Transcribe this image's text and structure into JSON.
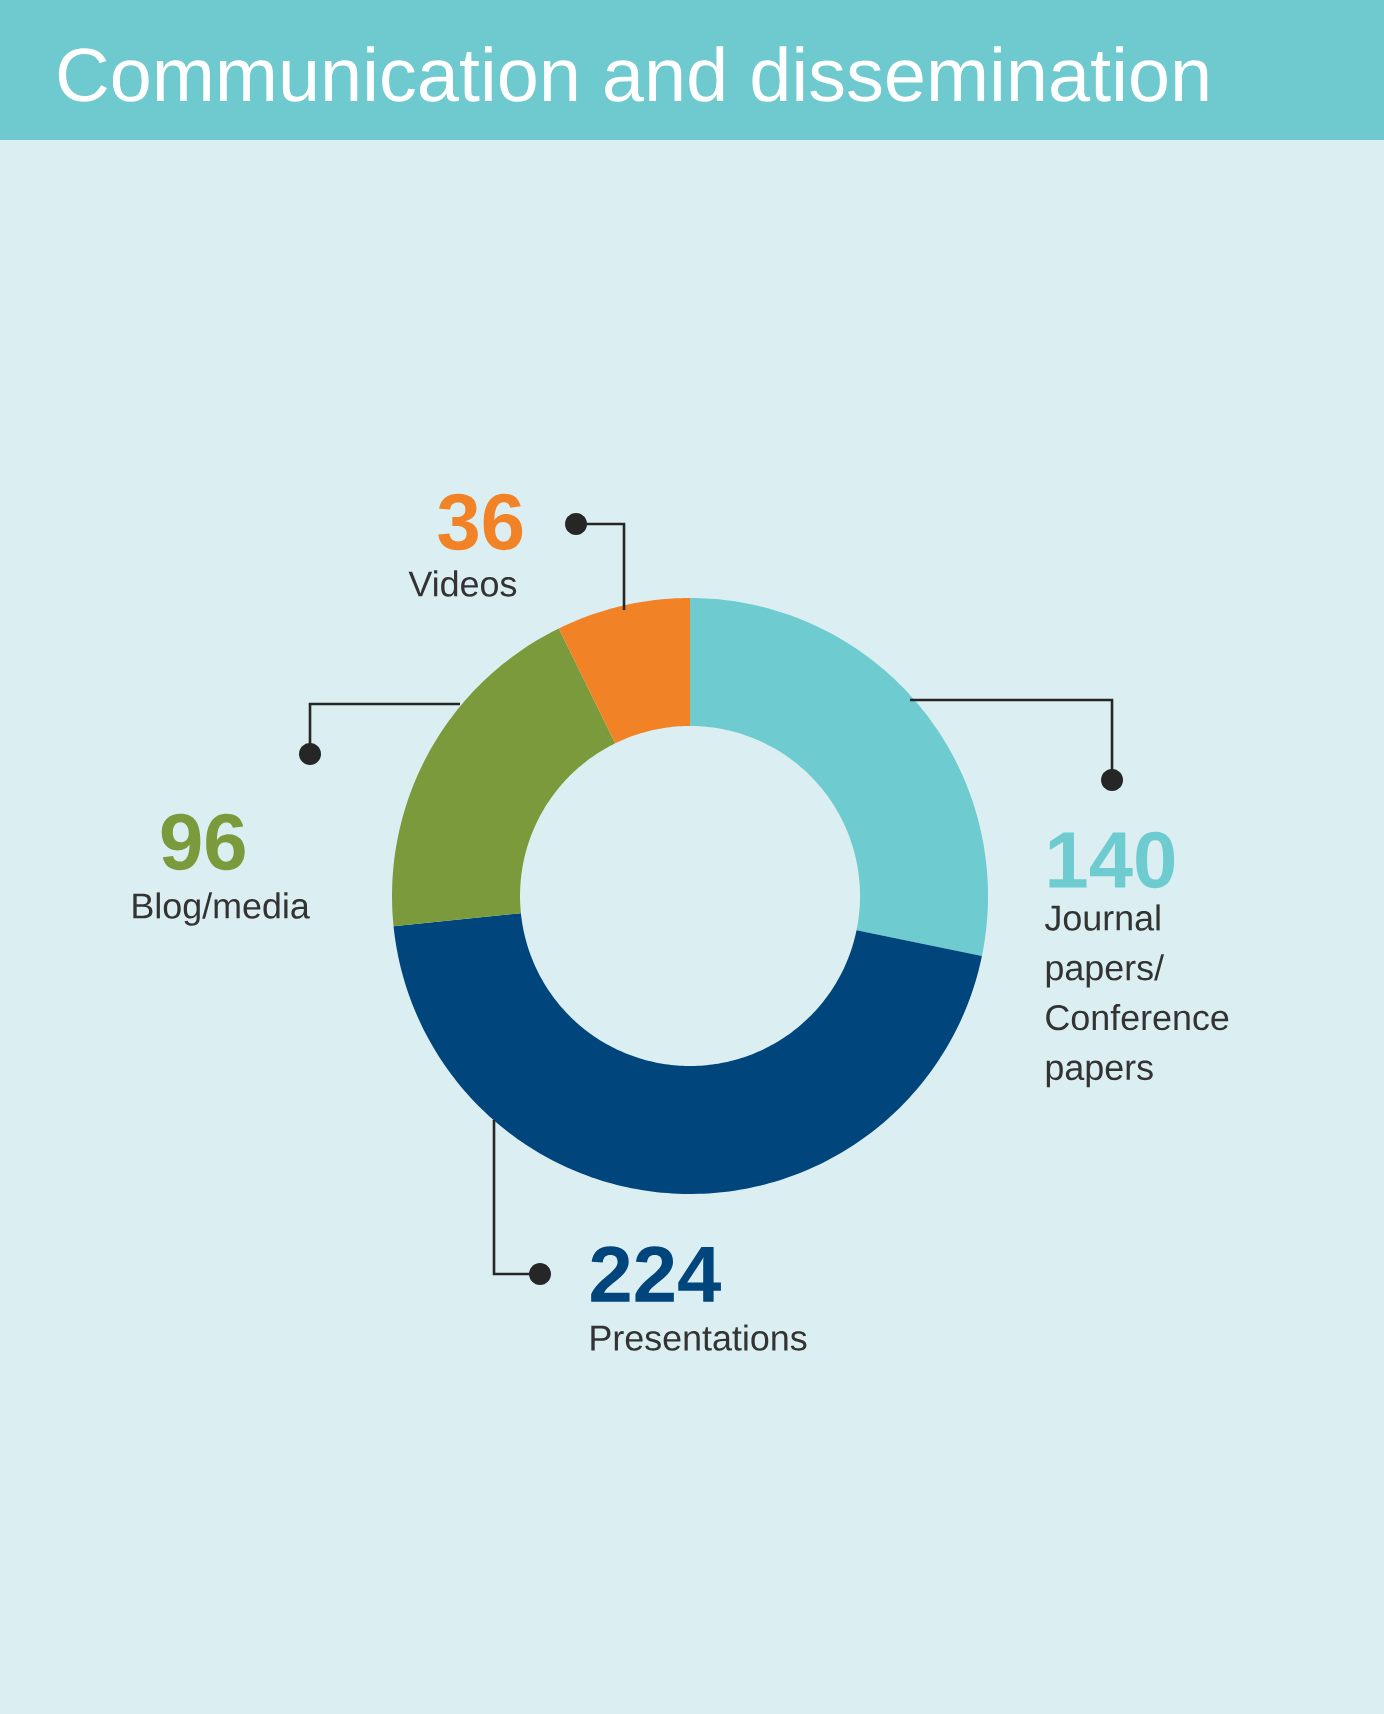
{
  "chart_data": {
    "type": "donut",
    "title": "Communication and dissemination",
    "categories": [
      "Journal papers/ Conference papers",
      "Presentations",
      "Blog/media",
      "Videos"
    ],
    "values": [
      140,
      224,
      96,
      36
    ],
    "colors": [
      "#6ecbd0",
      "#00457c",
      "#7a9a3c",
      "#f28226"
    ],
    "data_labels": true
  }
}
